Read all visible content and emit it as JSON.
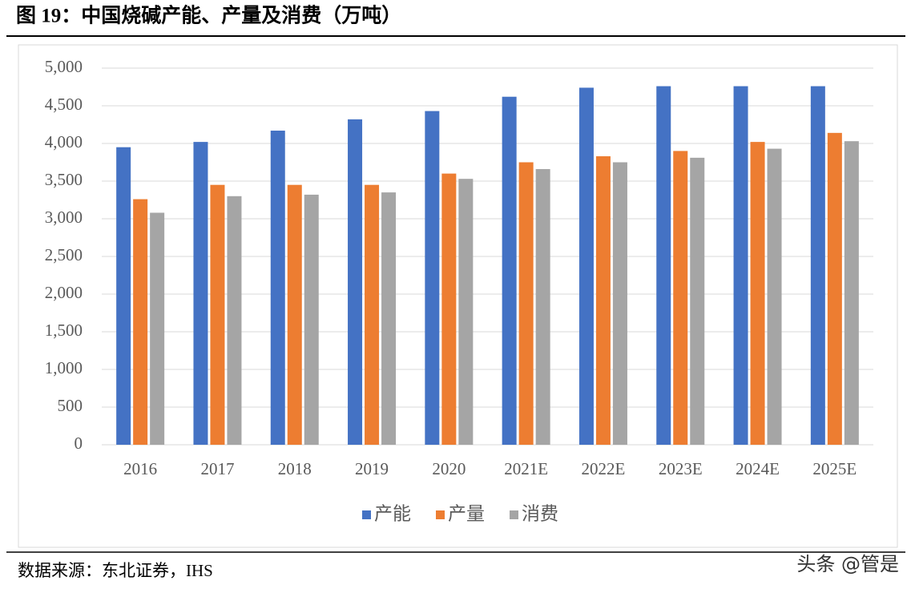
{
  "chart_data": {
    "type": "bar",
    "title": "图 19：中国烧碱产能、产量及消费（万吨）",
    "categories": [
      "2016",
      "2017",
      "2018",
      "2019",
      "2020",
      "2021E",
      "2022E",
      "2023E",
      "2024E",
      "2025E"
    ],
    "series": [
      {
        "name": "产能",
        "color": "#4472c4",
        "values": [
          3950,
          4020,
          4170,
          4320,
          4430,
          4620,
          4740,
          4760,
          4760,
          4760
        ]
      },
      {
        "name": "产量",
        "color": "#ed7d31",
        "values": [
          3260,
          3450,
          3450,
          3450,
          3600,
          3750,
          3830,
          3900,
          4020,
          4140
        ]
      },
      {
        "name": "消费",
        "color": "#a5a5a5",
        "values": [
          3080,
          3300,
          3320,
          3350,
          3530,
          3660,
          3750,
          3810,
          3930,
          4030
        ]
      }
    ],
    "ylim": [
      0,
      5000
    ],
    "yticks": [
      0,
      500,
      {
        "value": 1000,
        "label": "1,000"
      },
      {
        "value": 1500,
        "label": "1,500"
      },
      {
        "value": 2000,
        "label": "2,000"
      },
      {
        "value": 2500,
        "label": "2,500"
      },
      {
        "value": 3000,
        "label": "3,000"
      },
      {
        "value": 3500,
        "label": "3,500"
      },
      {
        "value": 4000,
        "label": "4,000"
      },
      {
        "value": 4500,
        "label": "4,500"
      },
      {
        "value": 5000,
        "label": "5,000"
      }
    ],
    "grid": true,
    "legend": "bottom"
  },
  "source": "数据来源：东北证券，IHS",
  "watermark": "头条 @管是"
}
